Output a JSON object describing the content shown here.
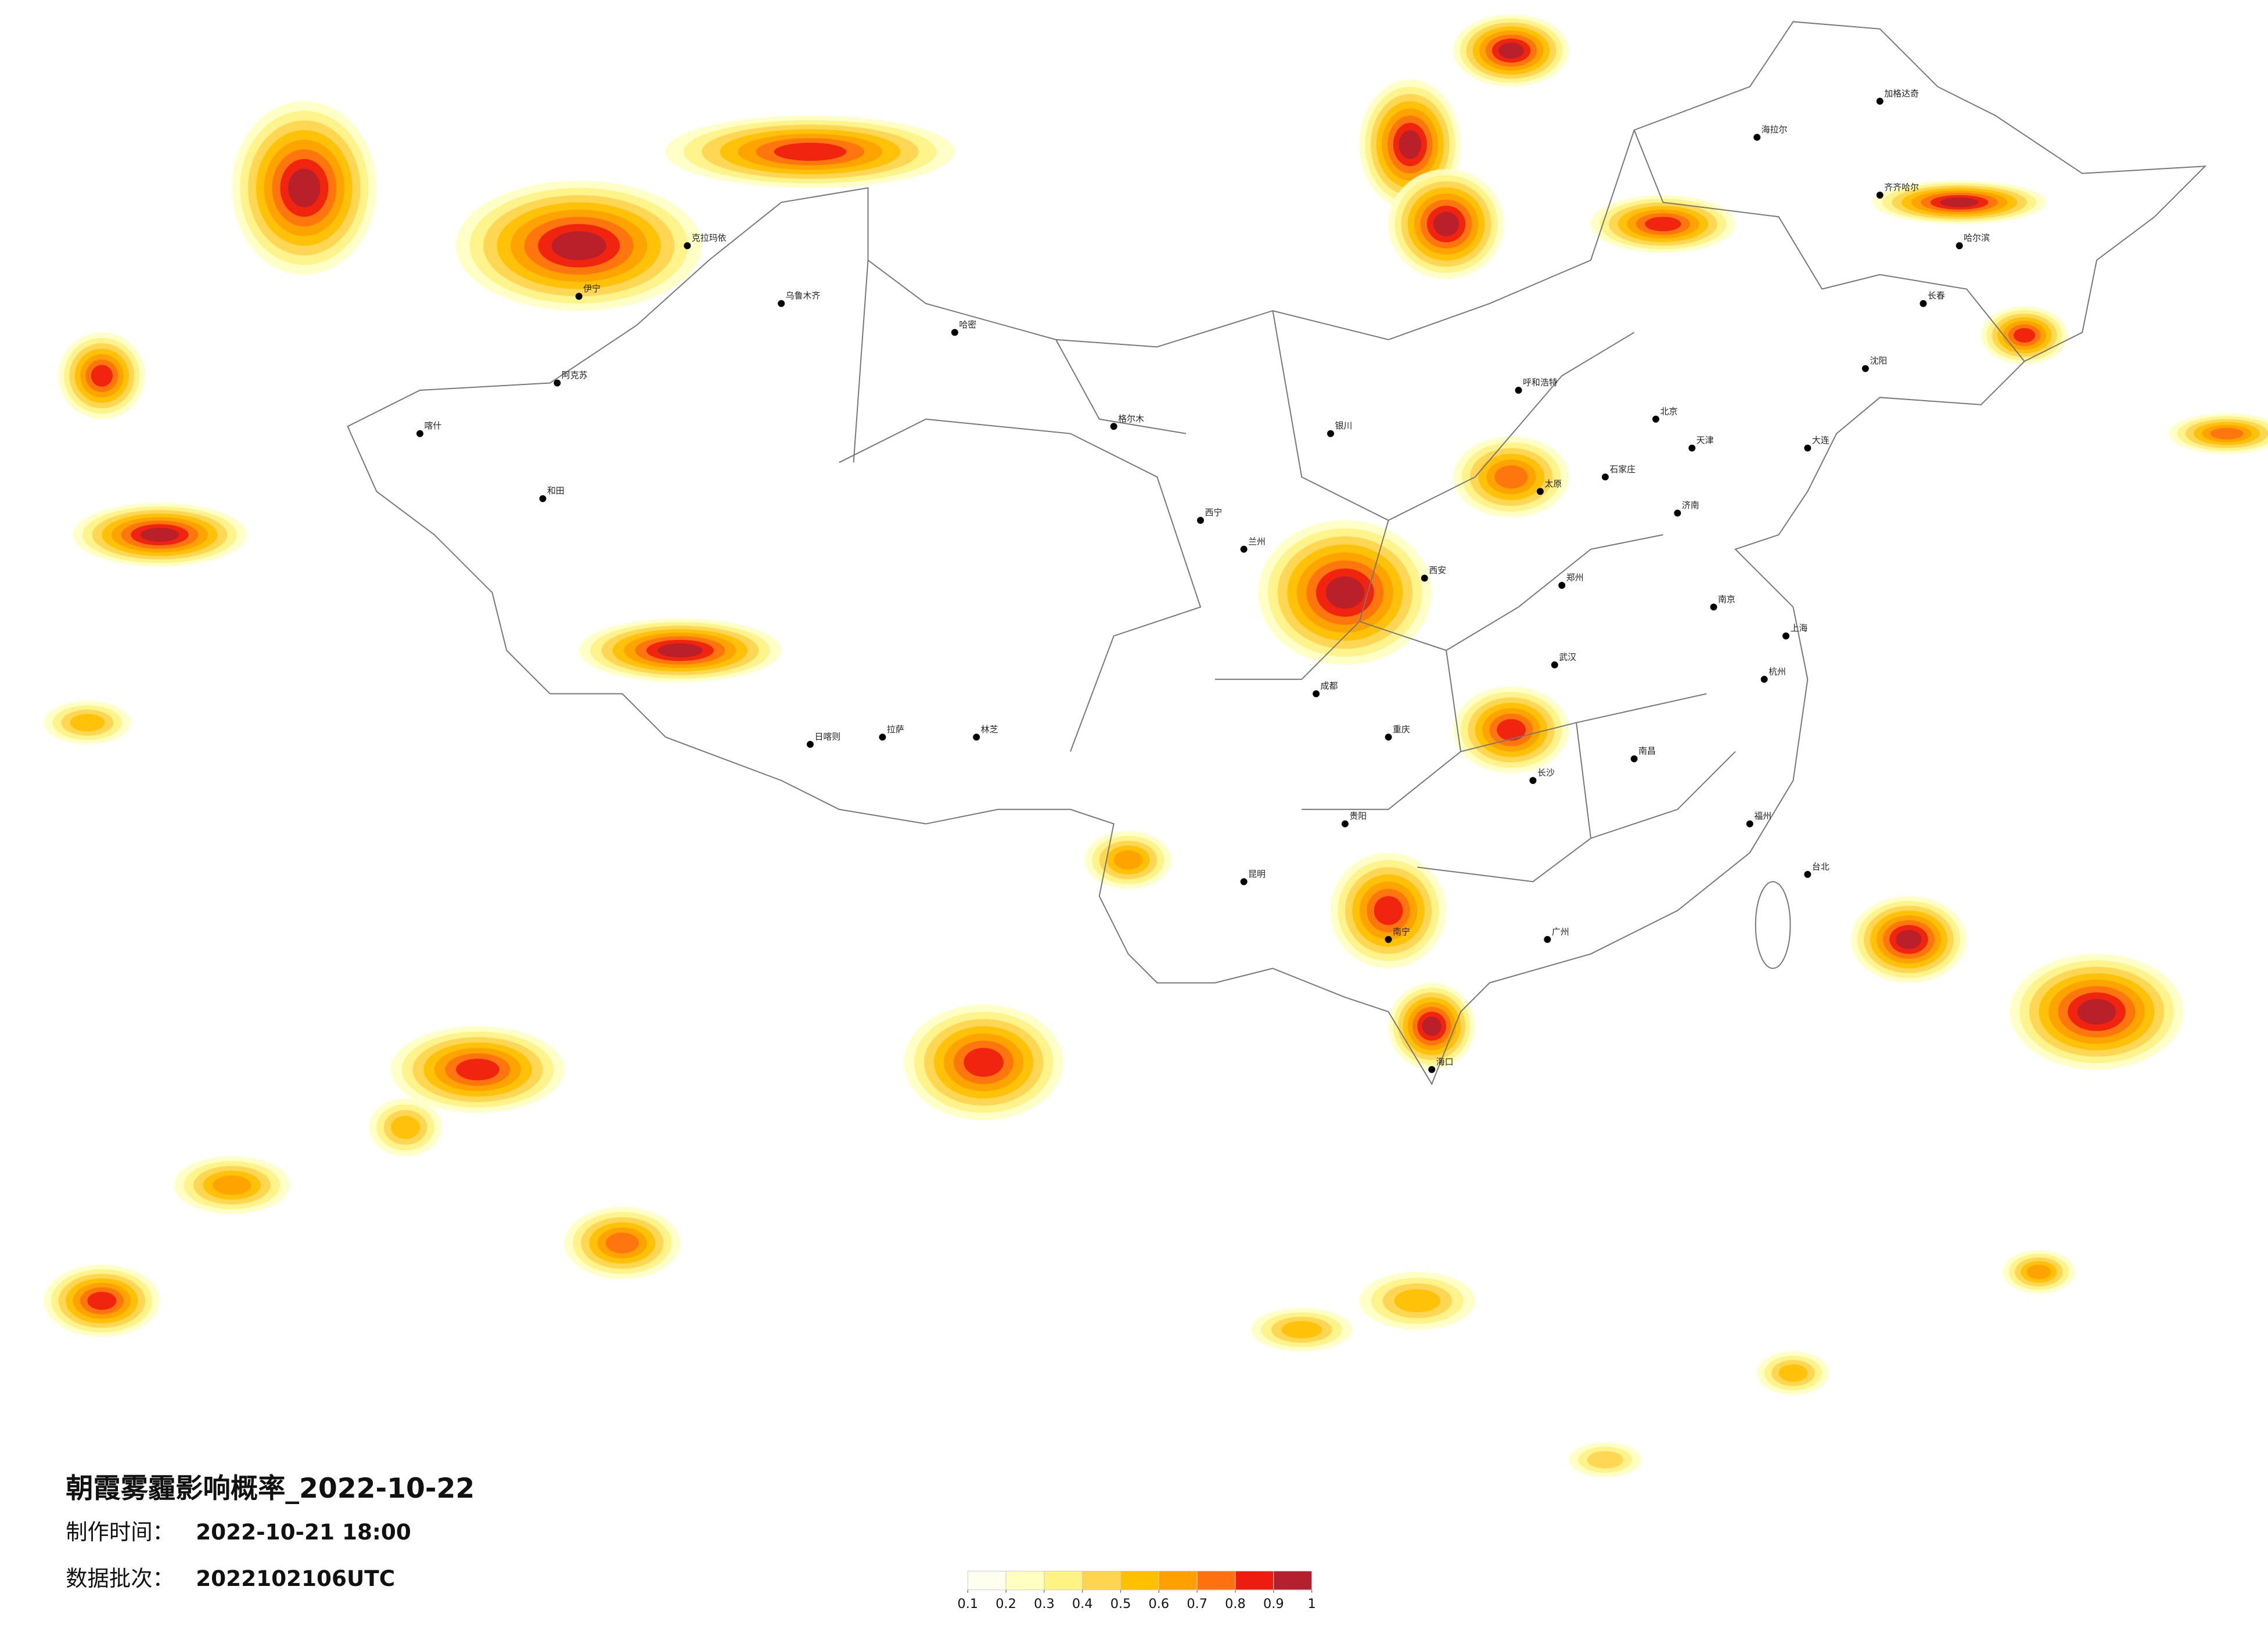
{
  "title": "朝霞雾霾影响概率_2022-10-22",
  "made_time": {
    "label": "制作时间：",
    "value": "2022-10-21 18:00"
  },
  "data_batch": {
    "label": "数据批次：",
    "value": "2022102106UTC"
  },
  "legend": {
    "ticks": [
      0.1,
      0.2,
      0.3,
      0.4,
      0.5,
      0.6,
      0.7,
      0.8,
      0.9,
      1
    ],
    "colors": [
      "#fffff0",
      "#ffffc2",
      "#fff384",
      "#ffd44f",
      "#ffc000",
      "#ffa000",
      "#ff7010",
      "#ee1c10",
      "#b4202e"
    ]
  },
  "cities": [
    "海拉尔",
    "加格达奇",
    "齐齐哈尔",
    "哈尔滨",
    "长春",
    "沈阳",
    "大连",
    "北京",
    "天津",
    "石家庄",
    "太原",
    "呼和浩特",
    "济南",
    "郑州",
    "西安",
    "兰州",
    "西宁",
    "银川",
    "乌鲁木齐",
    "克拉玛依",
    "伊宁",
    "阿克苏",
    "喀什",
    "和田",
    "哈密",
    "格尔木",
    "拉萨",
    "日喀则",
    "林芝",
    "成都",
    "重庆",
    "武汉",
    "南京",
    "上海",
    "杭州",
    "长沙",
    "南昌",
    "福州",
    "贵阳",
    "昆明",
    "南宁",
    "广州",
    "海口",
    "台北"
  ]
}
